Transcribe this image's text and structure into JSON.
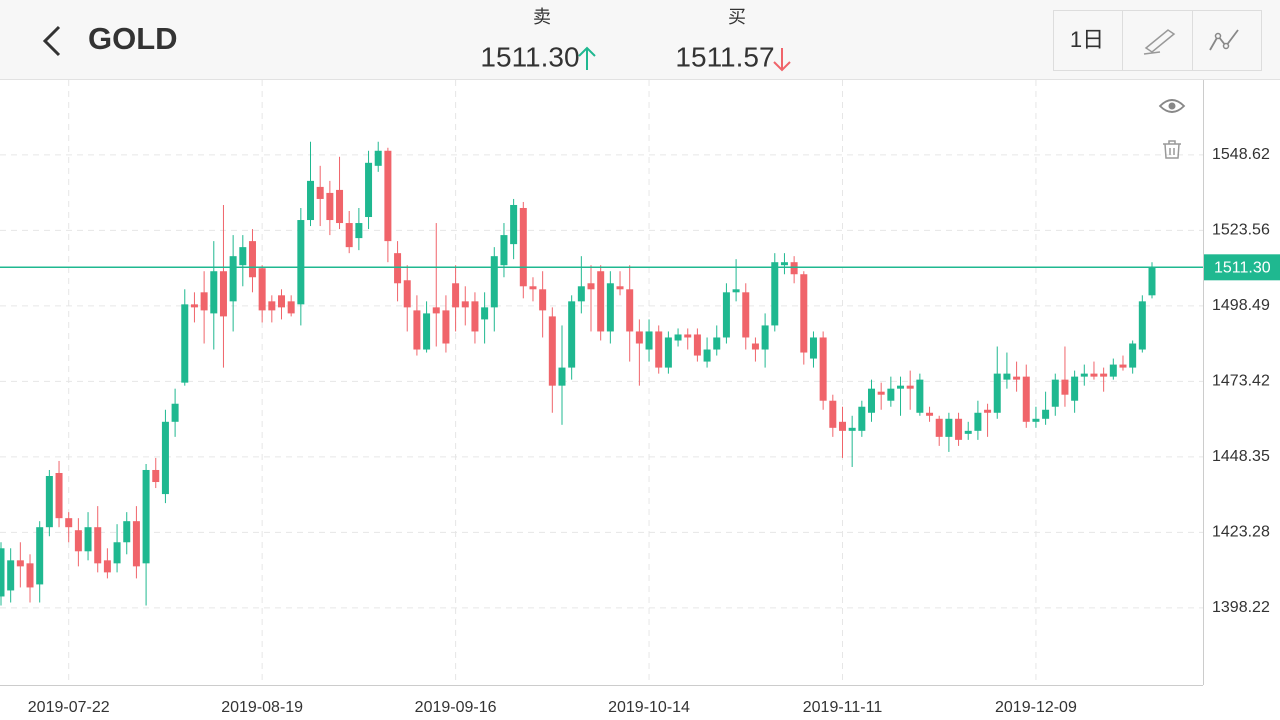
{
  "header": {
    "title": "GOLD",
    "sell_label": "卖",
    "sell_price": "1511.30",
    "buy_label": "买",
    "buy_price": "1511.57",
    "period_button": "1日"
  },
  "chart_data": {
    "type": "candlestick",
    "categories": [
      null,
      null,
      null,
      null,
      null,
      null,
      null,
      "2019-07-22",
      null,
      null,
      null,
      null,
      null,
      null,
      null,
      null,
      null,
      null,
      null,
      null,
      null,
      null,
      null,
      null,
      null,
      null,
      null,
      "2019-08-19",
      null,
      null,
      null,
      null,
      null,
      null,
      null,
      null,
      null,
      null,
      null,
      null,
      null,
      null,
      null,
      null,
      null,
      null,
      null,
      "2019-09-16",
      null,
      null,
      null,
      null,
      null,
      null,
      null,
      null,
      null,
      null,
      null,
      null,
      null,
      null,
      null,
      null,
      null,
      null,
      null,
      "2019-10-14",
      null,
      null,
      null,
      null,
      null,
      null,
      null,
      null,
      null,
      null,
      null,
      null,
      null,
      null,
      null,
      null,
      null,
      null,
      null,
      "2019-11-11",
      null,
      null,
      null,
      null,
      null,
      null,
      null,
      null,
      null,
      null,
      null,
      null,
      null,
      null,
      null,
      null,
      null,
      null,
      null,
      "2019-12-09",
      null,
      null,
      null,
      null,
      null,
      null,
      null,
      null,
      null,
      null,
      null,
      null
    ],
    "open": [
      1402,
      1404,
      1414,
      1413,
      1406,
      1425,
      1443,
      1428,
      1424,
      1417,
      1425,
      1414,
      1413,
      1420,
      1427,
      1413,
      1444,
      1436,
      1460,
      1473,
      1499,
      1503,
      1496,
      1510,
      1500,
      1512,
      1520,
      1511,
      1500,
      1502,
      1500,
      1499,
      1527,
      1538,
      1536,
      1537,
      1526,
      1521,
      1528,
      1545,
      1550,
      1516,
      1507,
      1497,
      1484,
      1498,
      1497,
      1506,
      1500,
      1500,
      1494,
      1498,
      1512,
      1519,
      1531,
      1505,
      1504,
      1495,
      1472,
      1478,
      1500,
      1506,
      1510,
      1490,
      1505,
      1504,
      1490,
      1484,
      1490,
      1478,
      1487,
      1489,
      1489,
      1480,
      1484,
      1488,
      1503,
      1503,
      1486,
      1484,
      1492,
      1512,
      1513,
      1509,
      1481,
      1488,
      1467,
      1460,
      1457,
      1457,
      1463,
      1470,
      1467,
      1471,
      1472,
      1463,
      1463,
      1461,
      1455,
      1461,
      1456,
      1457,
      1464,
      1463,
      1474,
      1475,
      1475,
      1460,
      1461,
      1465,
      1474,
      1467,
      1475,
      1476,
      1476,
      1475,
      1479,
      1478,
      1484,
      1502
    ],
    "high": [
      1420,
      1418,
      1420,
      1416,
      1427,
      1444,
      1447,
      1430,
      1428,
      1430,
      1432,
      1418,
      1426,
      1430,
      1432,
      1446,
      1448,
      1464,
      1471,
      1504,
      1503,
      1510,
      1520,
      1532,
      1522,
      1522,
      1524,
      1512,
      1502,
      1504,
      1502,
      1531,
      1553,
      1545,
      1540,
      1548,
      1530,
      1531,
      1550,
      1553,
      1551,
      1520,
      1512,
      1502,
      1500,
      1526,
      1502,
      1512,
      1505,
      1503,
      1503,
      1518,
      1526,
      1534,
      1533,
      1508,
      1510,
      1498,
      1492,
      1502,
      1515,
      1512,
      1512,
      1510,
      1510,
      1512,
      1494,
      1494,
      1492,
      1490,
      1491,
      1491,
      1491,
      1488,
      1492,
      1506,
      1514,
      1506,
      1488,
      1496,
      1516,
      1516,
      1515,
      1510,
      1490,
      1490,
      1469,
      1465,
      1462,
      1467,
      1474,
      1473,
      1475,
      1475,
      1477,
      1476,
      1465,
      1462,
      1463,
      1463,
      1460,
      1467,
      1466,
      1485,
      1483,
      1480,
      1479,
      1465,
      1470,
      1476,
      1485,
      1477,
      1479,
      1480,
      1478,
      1481,
      1482,
      1487,
      1502,
      1513
    ],
    "low": [
      1399,
      1400,
      1405,
      1400,
      1400,
      1422,
      1425,
      1420,
      1412,
      1414,
      1410,
      1408,
      1410,
      1416,
      1408,
      1399,
      1438,
      1433,
      1455,
      1472,
      1493,
      1486,
      1484,
      1478,
      1490,
      1505,
      1503,
      1493,
      1493,
      1494,
      1495,
      1492,
      1525,
      1525,
      1522,
      1524,
      1516,
      1517,
      1524,
      1543,
      1513,
      1500,
      1490,
      1482,
      1483,
      1485,
      1483,
      1490,
      1492,
      1486,
      1486,
      1490,
      1508,
      1514,
      1501,
      1500,
      1488,
      1463,
      1459,
      1474,
      1496,
      1490,
      1487,
      1486,
      1502,
      1480,
      1472,
      1480,
      1476,
      1476,
      1485,
      1484,
      1480,
      1478,
      1482,
      1486,
      1500,
      1484,
      1480,
      1478,
      1490,
      1509,
      1506,
      1479,
      1478,
      1464,
      1455,
      1448,
      1445,
      1455,
      1460,
      1464,
      1465,
      1462,
      1464,
      1462,
      1460,
      1452,
      1450,
      1452,
      1454,
      1454,
      1455,
      1461,
      1471,
      1470,
      1458,
      1458,
      1459,
      1462,
      1465,
      1463,
      1472,
      1474,
      1470,
      1474,
      1477,
      1476,
      1483,
      1501
    ],
    "close": [
      1418,
      1414,
      1412,
      1405,
      1425,
      1442,
      1428,
      1425,
      1417,
      1425,
      1413,
      1410,
      1420,
      1427,
      1412,
      1444,
      1440,
      1460,
      1466,
      1499,
      1498,
      1497,
      1510,
      1495,
      1515,
      1518,
      1508,
      1497,
      1497,
      1498,
      1496,
      1527,
      1540,
      1534,
      1527,
      1526,
      1518,
      1526,
      1546,
      1550,
      1520,
      1506,
      1498,
      1484,
      1496,
      1496,
      1486,
      1498,
      1498,
      1490,
      1498,
      1515,
      1522,
      1532,
      1505,
      1504,
      1497,
      1472,
      1478,
      1500,
      1505,
      1504,
      1490,
      1506,
      1504,
      1490,
      1486,
      1490,
      1478,
      1488,
      1489,
      1488,
      1482,
      1484,
      1488,
      1503,
      1504,
      1488,
      1484,
      1492,
      1513,
      1513,
      1509,
      1483,
      1488,
      1467,
      1458,
      1457,
      1458,
      1465,
      1471,
      1469,
      1471,
      1472,
      1471,
      1474,
      1462,
      1455,
      1461,
      1454,
      1457,
      1463,
      1463,
      1476,
      1476,
      1474,
      1460,
      1461,
      1464,
      1474,
      1469,
      1475,
      1476,
      1475,
      1475,
      1479,
      1478,
      1486,
      1500,
      1511.3
    ],
    "up_color": "#1fb890",
    "down_color": "#f0646a",
    "ylim": [
      1372.6,
      1573.5
    ],
    "yticks": [
      1398.22,
      1423.28,
      1448.35,
      1473.42,
      1498.49,
      1523.56,
      1548.62
    ],
    "price_line": {
      "value": 1511.3,
      "label": "1511.30"
    },
    "grid": true
  }
}
